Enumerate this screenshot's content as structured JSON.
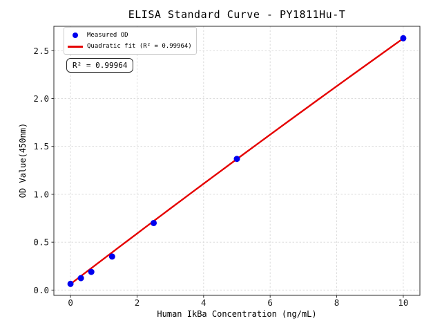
{
  "figure": {
    "background": "#ffffff"
  },
  "chart_data": {
    "type": "scatter",
    "title": "ELISA Standard Curve - PY1811Hu-T",
    "xlabel": "Human IkBa Concentration (ng/mL)",
    "ylabel": "OD Value(450nm)",
    "xlim": [
      -0.5,
      10.5
    ],
    "ylim": [
      -0.055,
      2.755
    ],
    "x_ticks": [
      0,
      2,
      4,
      6,
      8,
      10
    ],
    "x_tick_labels": [
      "0",
      "2",
      "4",
      "6",
      "8",
      "10"
    ],
    "y_ticks": [
      0,
      0.5,
      1.0,
      1.5,
      2.0,
      2.5
    ],
    "y_tick_labels": [
      "0.0",
      "0.5",
      "1.0",
      "1.5",
      "2.0",
      "2.5"
    ],
    "grid": true,
    "legend_position": "upper left",
    "series": [
      {
        "name": "Measured OD",
        "type": "scatter",
        "color": "#0000ee",
        "x": [
          0,
          0.3125,
          0.625,
          1.25,
          2.5,
          5,
          10
        ],
        "y": [
          0.065,
          0.125,
          0.19,
          0.35,
          0.7,
          1.37,
          2.63
        ]
      },
      {
        "name": "Quadratic fit (R² = 0.99964)",
        "type": "line",
        "color": "#e50000",
        "fit": {
          "kind": "quadratic",
          "a": 0.063,
          "b": 0.2655,
          "c": -0.0009,
          "x_start": 0,
          "x_end": 10
        },
        "r_squared": 0.99964
      }
    ]
  },
  "legend": {
    "items": [
      {
        "marker": "dot",
        "color": "#0000ee",
        "label": "Measured OD"
      },
      {
        "marker": "line",
        "color": "#e50000",
        "label": "Quadratic fit (R² = 0.99964)"
      }
    ]
  },
  "annotation": {
    "text": "R² = 0.99964"
  },
  "colors": {
    "points": "#0000ee",
    "fit_line": "#e50000",
    "grid": "#d8d8d8",
    "spine": "#2b2b2b",
    "text": "#000000"
  }
}
